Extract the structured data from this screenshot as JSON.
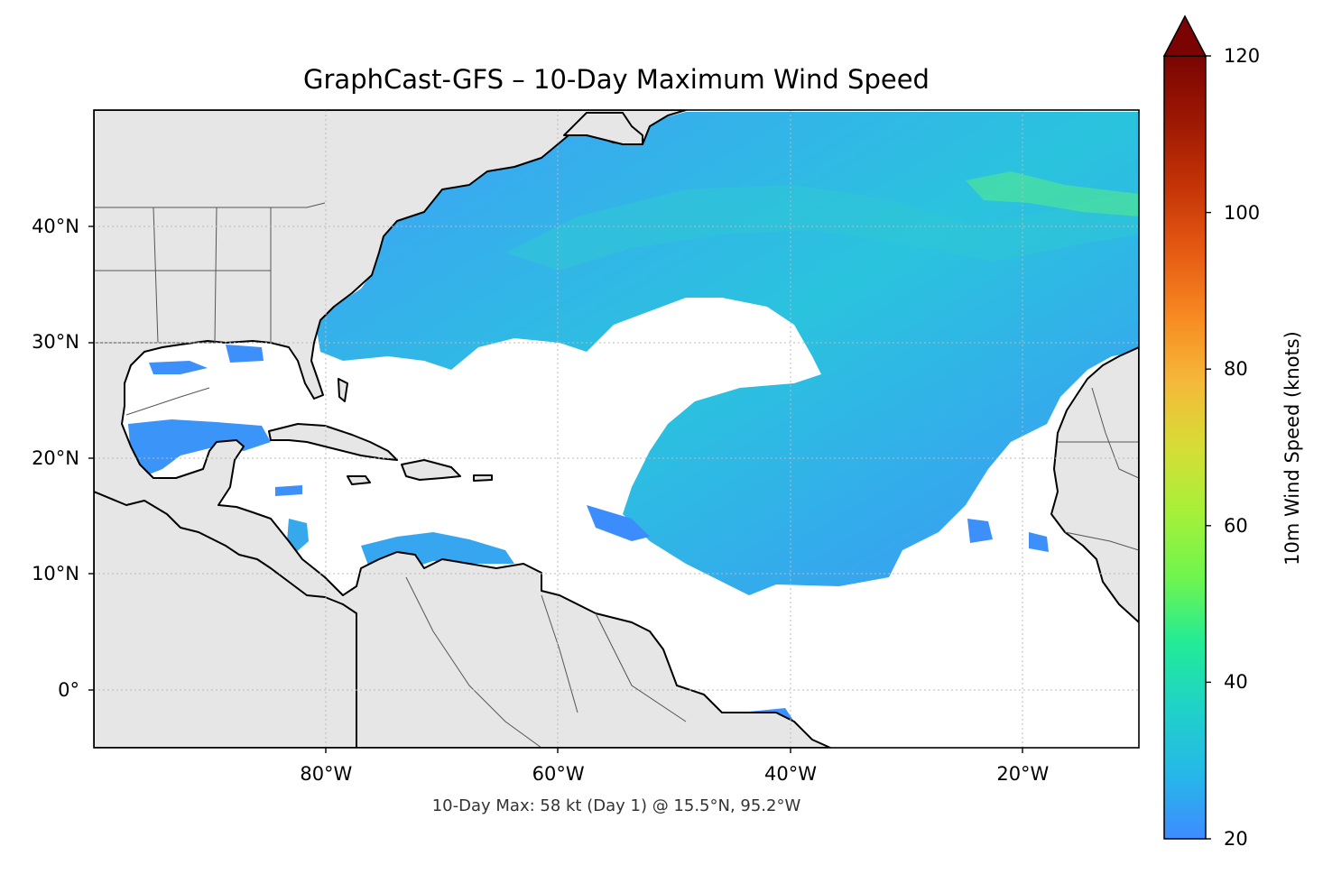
{
  "title": "GraphCast-GFS – 10-Day Maximum Wind Speed",
  "caption": "10-Day Max: 58 kt (Day 1) @ 15.5°N, 95.2°W",
  "map": {
    "lon_range": [
      -100,
      -10
    ],
    "lat_range": [
      -5,
      50
    ],
    "y_ticks": [
      {
        "value": 40,
        "label": "40°N"
      },
      {
        "value": 30,
        "label": "30°N"
      },
      {
        "value": 20,
        "label": "20°N"
      },
      {
        "value": 10,
        "label": "10°N"
      },
      {
        "value": 0,
        "label": "0°"
      }
    ],
    "x_ticks": [
      {
        "value": -80,
        "label": "80°W"
      },
      {
        "value": -60,
        "label": "60°W"
      },
      {
        "value": -40,
        "label": "40°W"
      },
      {
        "value": -20,
        "label": "20°W"
      }
    ],
    "land_color": "#e6e6e6",
    "coast_color": "#000000",
    "border_color": "#555555",
    "grid": true
  },
  "colorbar": {
    "label": "10m Wind Speed (knots)",
    "min": 20,
    "max": 120,
    "extend": "max",
    "ticks": [
      {
        "value": 120,
        "label": "120"
      },
      {
        "value": 100,
        "label": "100"
      },
      {
        "value": 80,
        "label": "80"
      },
      {
        "value": 60,
        "label": "60"
      },
      {
        "value": 40,
        "label": "40"
      },
      {
        "value": 20,
        "label": "20"
      }
    ],
    "colors": [
      "#3e8cff",
      "#26b8e8",
      "#1fd2c8",
      "#22eb96",
      "#6ff54e",
      "#a6f03a",
      "#d6dd35",
      "#f5b93a",
      "#f78a22",
      "#e65a13",
      "#c43407",
      "#9d1803",
      "#7a0403"
    ]
  },
  "peak": {
    "value": 58,
    "unit": "kt",
    "day": 1,
    "lat": 15.5,
    "lon": -95.2
  }
}
